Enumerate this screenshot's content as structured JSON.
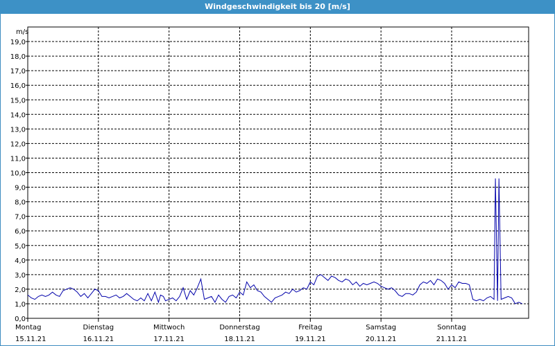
{
  "chart_data": {
    "type": "line",
    "title": "Windgeschwindigkeit bis 20 [m/s]",
    "ylabel": "m/s",
    "ylim": [
      0,
      20
    ],
    "yticks": [
      "0,0",
      "1,0",
      "2,0",
      "3,0",
      "4,0",
      "5,0",
      "6,0",
      "7,0",
      "8,0",
      "9,0",
      "10,0",
      "11,0",
      "12,0",
      "13,0",
      "14,0",
      "15,0",
      "16,0",
      "17,0",
      "18,0",
      "19,0"
    ],
    "xlim": [
      0,
      7
    ],
    "grid": true,
    "days": [
      {
        "day": "Montag",
        "date": "15.11.21"
      },
      {
        "day": "Dienstag",
        "date": "16.11.21"
      },
      {
        "day": "Mittwoch",
        "date": "17.11.21"
      },
      {
        "day": "Donnerstag",
        "date": "18.11.21"
      },
      {
        "day": "Freitag",
        "date": "19.11.21"
      },
      {
        "day": "Samstag",
        "date": "20.11.21"
      },
      {
        "day": "Sonntag",
        "date": "21.11.21"
      }
    ],
    "series": [
      {
        "color": "#0000aa",
        "x": [
          0.0,
          0.05,
          0.1,
          0.15,
          0.2,
          0.25,
          0.3,
          0.35,
          0.4,
          0.45,
          0.5,
          0.55,
          0.6,
          0.65,
          0.7,
          0.75,
          0.8,
          0.85,
          0.9,
          0.95,
          1.0,
          1.05,
          1.1,
          1.15,
          1.2,
          1.25,
          1.3,
          1.35,
          1.4,
          1.45,
          1.5,
          1.55,
          1.6,
          1.65,
          1.7,
          1.75,
          1.8,
          1.85,
          1.88,
          1.92,
          1.95,
          2.0,
          2.05,
          2.1,
          2.15,
          2.2,
          2.25,
          2.3,
          2.35,
          2.4,
          2.45,
          2.5,
          2.55,
          2.6,
          2.65,
          2.7,
          2.75,
          2.8,
          2.85,
          2.9,
          2.95,
          3.0,
          3.05,
          3.1,
          3.15,
          3.2,
          3.25,
          3.3,
          3.35,
          3.4,
          3.45,
          3.5,
          3.55,
          3.6,
          3.65,
          3.7,
          3.75,
          3.8,
          3.85,
          3.9,
          3.95,
          4.0,
          4.05,
          4.1,
          4.15,
          4.2,
          4.25,
          4.3,
          4.35,
          4.4,
          4.45,
          4.5,
          4.55,
          4.6,
          4.65,
          4.7,
          4.75,
          4.8,
          4.85,
          4.9,
          4.95,
          5.0,
          5.05,
          5.1,
          5.15,
          5.2,
          5.25,
          5.3,
          5.35,
          5.4,
          5.45,
          5.5,
          5.55,
          5.6,
          5.65,
          5.7,
          5.75,
          5.8,
          5.85,
          5.9,
          5.95,
          6.0,
          6.05,
          6.1,
          6.15,
          6.2,
          6.25,
          6.3,
          6.35,
          6.4,
          6.45,
          6.5,
          6.55,
          6.6,
          6.62,
          6.65,
          6.67,
          6.7,
          6.75,
          6.8,
          6.85,
          6.9,
          6.95,
          7.0
        ],
        "y": [
          1.6,
          1.4,
          1.3,
          1.5,
          1.6,
          1.5,
          1.6,
          1.8,
          1.6,
          1.5,
          1.9,
          2.0,
          2.1,
          2.0,
          1.8,
          1.5,
          1.7,
          1.4,
          1.7,
          2.0,
          1.9,
          1.5,
          1.5,
          1.4,
          1.5,
          1.6,
          1.4,
          1.5,
          1.7,
          1.5,
          1.3,
          1.2,
          1.4,
          1.2,
          1.7,
          1.2,
          1.8,
          1.1,
          1.6,
          1.5,
          1.2,
          1.3,
          1.4,
          1.2,
          1.5,
          2.1,
          1.3,
          1.9,
          1.6,
          2.1,
          2.7,
          1.3,
          1.4,
          1.5,
          1.1,
          1.6,
          1.3,
          1.1,
          1.5,
          1.6,
          1.4,
          1.8,
          1.6,
          2.5,
          2.1,
          2.3,
          1.9,
          1.8,
          1.5,
          1.3,
          1.1,
          1.4,
          1.5,
          1.6,
          1.8,
          1.7,
          2.0,
          1.8,
          1.9,
          2.1,
          2.0,
          2.5,
          2.3,
          2.9,
          3.0,
          2.8,
          2.6,
          2.9,
          2.8,
          2.6,
          2.5,
          2.7,
          2.6,
          2.3,
          2.5,
          2.2,
          2.4,
          2.3,
          2.4,
          2.5,
          2.4,
          2.2,
          2.1,
          2.0,
          2.1,
          1.9,
          1.6,
          1.5,
          1.7,
          1.7,
          1.6,
          1.8,
          2.3,
          2.5,
          2.4,
          2.6,
          2.3,
          2.7,
          2.6,
          2.4,
          2.0,
          2.3,
          2.1,
          2.5,
          2.4,
          2.4,
          2.3,
          1.3,
          1.2,
          1.3,
          1.2,
          1.4,
          1.5,
          1.3,
          9.6,
          1.2,
          9.6,
          1.3,
          1.4,
          1.5,
          1.4,
          1.0,
          1.1,
          1.0
        ]
      }
    ]
  }
}
